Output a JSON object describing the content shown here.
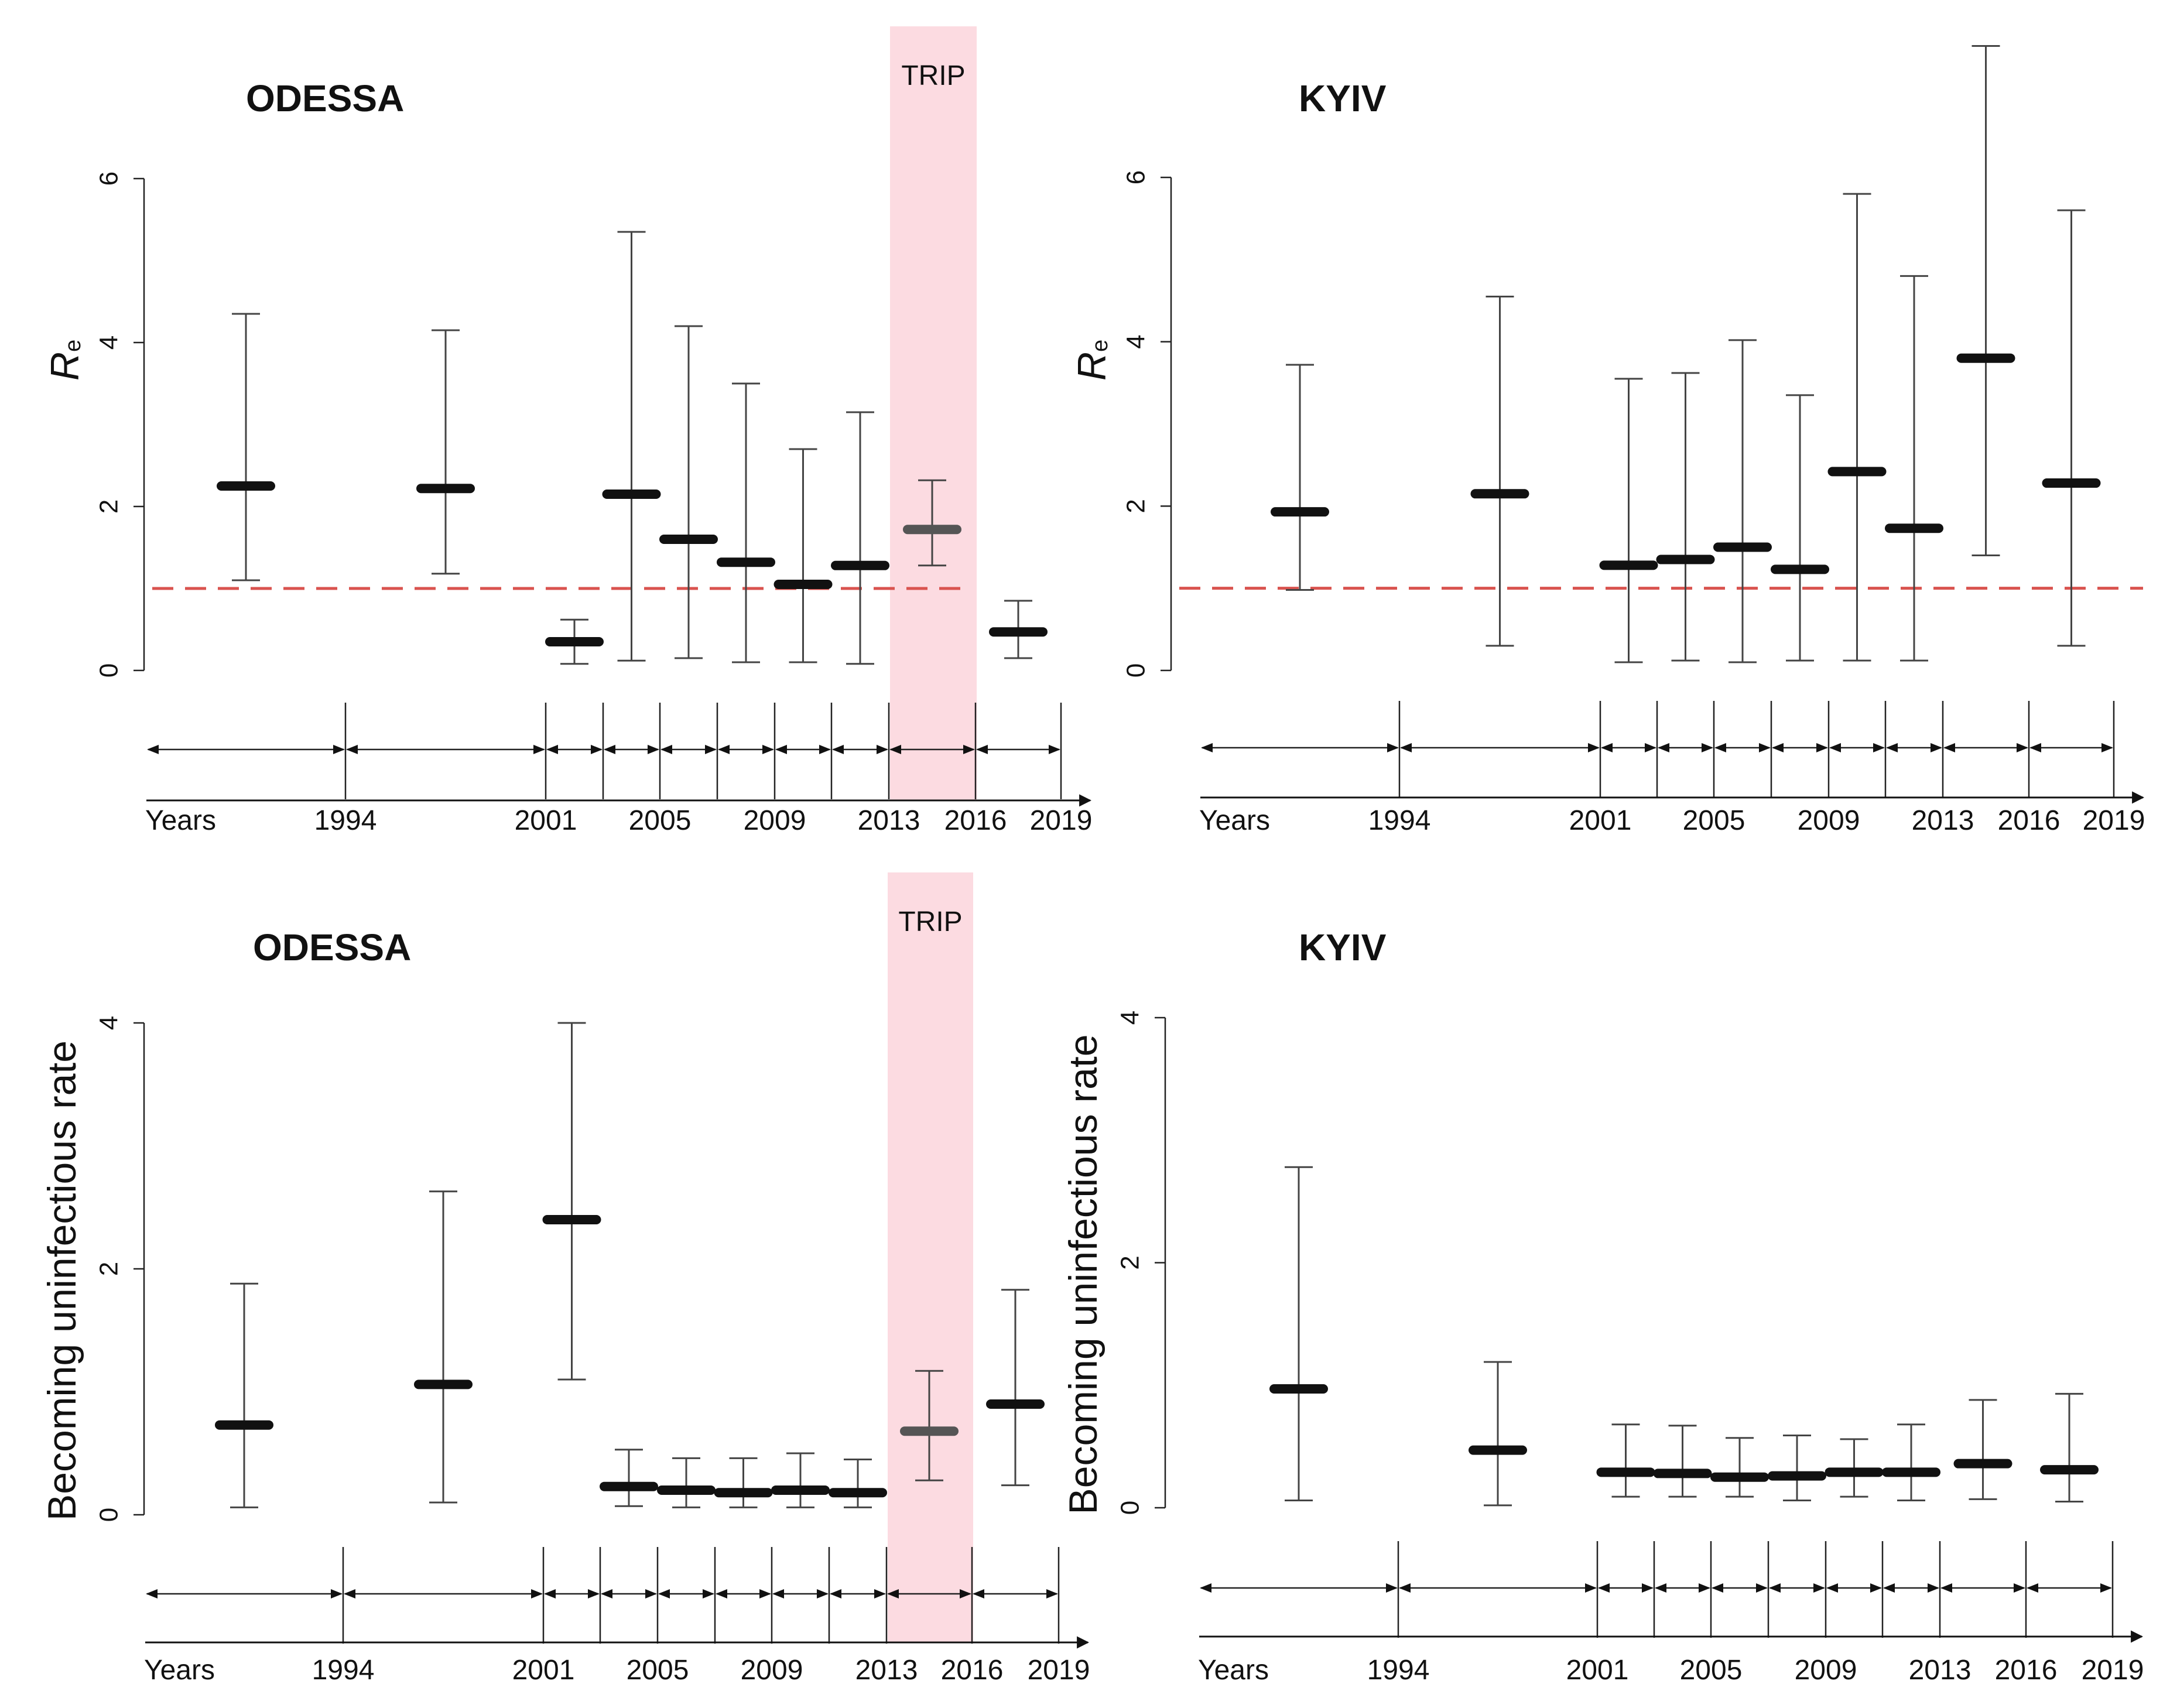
{
  "colors": {
    "trip_band": "#fcdbe1",
    "threshold": "#d9534f",
    "median": "#111111",
    "median_trip": "#555555",
    "whisker": "#444444"
  },
  "timeline_labels": [
    "Years",
    "1994",
    "2001",
    "2005",
    "2009",
    "2013",
    "2016",
    "2019"
  ],
  "chart_data": [
    {
      "type": "errorbar",
      "title": "ODESSA",
      "ylabel": "Re",
      "ylabel_main": "R",
      "ylabel_sub": "e",
      "xlabel": "Years",
      "yticks": [
        0,
        2,
        4,
        6
      ],
      "ylim": [
        0,
        6
      ],
      "threshold": 1,
      "highlight": {
        "label": "TRIP",
        "interval": 9
      },
      "categories": [
        "<1994",
        "1994-2001",
        "2001-2003",
        "2003-2005",
        "2005-2007",
        "2007-2009",
        "2009-2011",
        "2011-2013",
        "2013-2016",
        "2016-2019"
      ],
      "median": [
        2.25,
        2.22,
        0.35,
        2.15,
        1.6,
        1.32,
        1.05,
        1.28,
        1.72,
        0.47
      ],
      "lower": [
        1.1,
        1.18,
        0.08,
        0.12,
        0.15,
        0.1,
        0.1,
        0.08,
        1.28,
        0.15
      ],
      "upper": [
        4.35,
        4.15,
        0.62,
        5.35,
        4.2,
        3.5,
        2.7,
        3.15,
        2.32,
        0.85
      ]
    },
    {
      "type": "errorbar",
      "title": "KYIV",
      "ylabel": "Re",
      "ylabel_main": "R",
      "ylabel_sub": "e",
      "xlabel": "Years",
      "yticks": [
        0,
        2,
        4,
        6
      ],
      "ylim": [
        0,
        6
      ],
      "threshold": 1,
      "highlight": null,
      "categories": [
        "<1994",
        "1994-2001",
        "2001-2003",
        "2003-2005",
        "2005-2007",
        "2007-2009",
        "2009-2011",
        "2011-2013",
        "2013-2016",
        "2016-2019"
      ],
      "median": [
        1.93,
        2.15,
        1.28,
        1.35,
        1.5,
        1.23,
        2.42,
        1.73,
        3.8,
        2.28
      ],
      "lower": [
        0.98,
        0.3,
        0.1,
        0.12,
        0.1,
        0.12,
        0.12,
        0.12,
        1.4,
        0.3
      ],
      "upper": [
        3.72,
        4.55,
        3.55,
        3.62,
        4.02,
        3.35,
        5.8,
        4.8,
        7.6,
        5.6
      ]
    },
    {
      "type": "errorbar",
      "title": "ODESSA",
      "ylabel": "Becoming uninfectious rate",
      "xlabel": "Years",
      "yticks": [
        0,
        2,
        4
      ],
      "ylim": [
        0,
        4
      ],
      "threshold": null,
      "highlight": {
        "label": "TRIP",
        "interval": 9
      },
      "categories": [
        "<1994",
        "1994-2001",
        "2001-2003",
        "2003-2005",
        "2005-2007",
        "2007-2009",
        "2009-2011",
        "2011-2013",
        "2013-2016",
        "2016-2019"
      ],
      "median": [
        0.73,
        1.06,
        2.4,
        0.23,
        0.2,
        0.18,
        0.2,
        0.18,
        0.68,
        0.9
      ],
      "lower": [
        0.06,
        0.1,
        1.1,
        0.07,
        0.06,
        0.06,
        0.06,
        0.06,
        0.28,
        0.24
      ],
      "upper": [
        1.88,
        2.63,
        4.0,
        0.53,
        0.46,
        0.46,
        0.5,
        0.45,
        1.17,
        1.83
      ]
    },
    {
      "type": "errorbar",
      "title": "KYIV",
      "ylabel": "Becoming uninfectious rate",
      "xlabel": "Years",
      "yticks": [
        0,
        2,
        4
      ],
      "ylim": [
        0,
        4
      ],
      "threshold": null,
      "highlight": null,
      "categories": [
        "<1994",
        "1994-2001",
        "2001-2003",
        "2003-2005",
        "2005-2007",
        "2007-2009",
        "2009-2011",
        "2011-2013",
        "2013-2016",
        "2016-2019"
      ],
      "median": [
        0.97,
        0.47,
        0.29,
        0.28,
        0.25,
        0.26,
        0.29,
        0.29,
        0.36,
        0.31
      ],
      "lower": [
        0.06,
        0.02,
        0.09,
        0.09,
        0.09,
        0.06,
        0.09,
        0.06,
        0.07,
        0.05
      ],
      "upper": [
        2.78,
        1.19,
        0.68,
        0.67,
        0.57,
        0.59,
        0.56,
        0.68,
        0.88,
        0.93
      ]
    }
  ]
}
